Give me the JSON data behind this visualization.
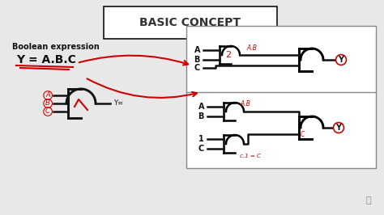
{
  "bg_color": "#e8e8e8",
  "title": "BASIC CONCEPT",
  "title_box_color": "white",
  "title_text_color": "#333333",
  "bool_label": "Boolean expression",
  "bool_eq": "Y = A.B.C",
  "red_color": "#cc0000",
  "dark_color": "#111111",
  "fig_width": 4.74,
  "fig_height": 2.66
}
